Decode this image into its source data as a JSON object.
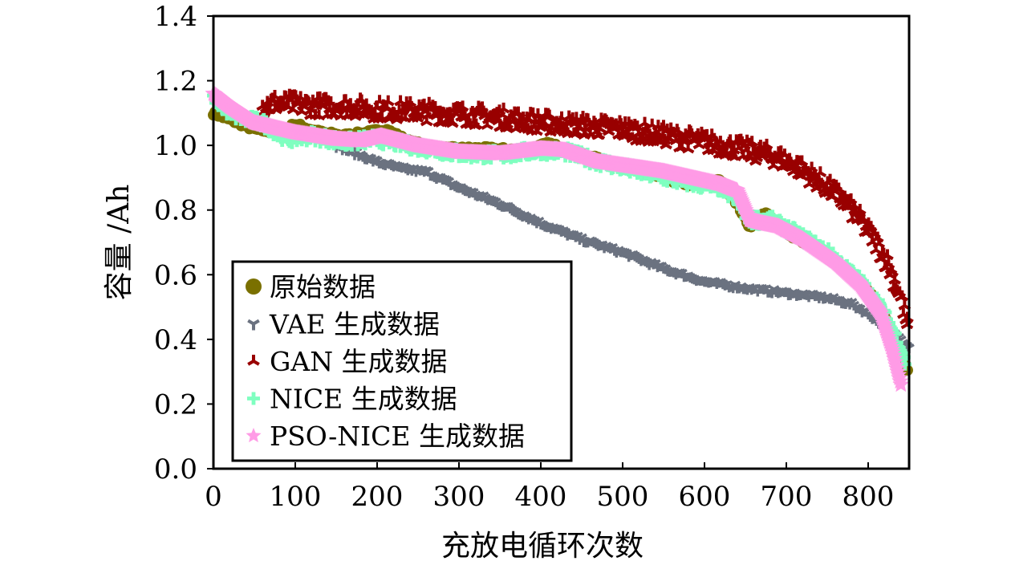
{
  "chart_data": {
    "type": "scatter",
    "title": "",
    "xlabel": "充放电循环次数",
    "ylabel": "容量 /Ah",
    "xlim": [
      0,
      850
    ],
    "ylim": [
      0.0,
      1.4
    ],
    "grid": false,
    "x_ticks": [
      0,
      100,
      200,
      300,
      400,
      500,
      600,
      700,
      800
    ],
    "x_tick_labels": [
      "0",
      "100",
      "200",
      "300",
      "400",
      "500",
      "600",
      "700",
      "800"
    ],
    "y_ticks": [
      0.0,
      0.2,
      0.4,
      0.6,
      0.8,
      1.0,
      1.2,
      1.4
    ],
    "y_tick_labels": [
      "0.0",
      "0.2",
      "0.4",
      "0.6",
      "0.8",
      "1.0",
      "1.2",
      "1.4"
    ],
    "legend_placement": "lower-left",
    "series": [
      {
        "name": "原始数据",
        "marker": "circle",
        "color": "#7a7000",
        "x": [
          0,
          20,
          50,
          80,
          100,
          130,
          160,
          190,
          210,
          240,
          280,
          330,
          380,
          410,
          440,
          480,
          530,
          580,
          620,
          640,
          655,
          675,
          700,
          730,
          770,
          800,
          820,
          840,
          848
        ],
        "y": [
          1.1,
          1.08,
          1.05,
          1.04,
          1.065,
          1.04,
          1.03,
          1.04,
          1.05,
          1.01,
          0.99,
          0.99,
          0.985,
          1.005,
          0.98,
          0.95,
          0.91,
          0.88,
          0.89,
          0.82,
          0.75,
          0.79,
          0.73,
          0.69,
          0.62,
          0.55,
          0.47,
          0.37,
          0.31
        ]
      },
      {
        "name": "VAE 生成数据",
        "marker": "tri-down",
        "color": "#6b7280",
        "x": [
          150,
          180,
          200,
          230,
          260,
          300,
          350,
          400,
          450,
          500,
          550,
          600,
          650,
          700,
          750,
          780,
          800,
          820,
          835,
          850
        ],
        "y": [
          1.0,
          0.97,
          0.95,
          0.93,
          0.92,
          0.87,
          0.82,
          0.76,
          0.71,
          0.67,
          0.62,
          0.58,
          0.56,
          0.545,
          0.53,
          0.51,
          0.48,
          0.44,
          0.41,
          0.38
        ]
      },
      {
        "name": "GAN 生成数据",
        "marker": "tri-up",
        "color": "#990000",
        "x": [
          60,
          75,
          130,
          160,
          200,
          250,
          300,
          350,
          400,
          450,
          500,
          550,
          600,
          640,
          680,
          710,
          740,
          770,
          790,
          810,
          825,
          840,
          848
        ],
        "y": [
          1.12,
          1.13,
          1.12,
          1.12,
          1.11,
          1.105,
          1.095,
          1.085,
          1.07,
          1.06,
          1.05,
          1.03,
          1.01,
          0.99,
          0.97,
          0.94,
          0.89,
          0.83,
          0.77,
          0.7,
          0.63,
          0.53,
          0.44
        ]
      },
      {
        "name": "NICE 生成数据",
        "marker": "plus",
        "color": "#7fffc0",
        "x": [
          0,
          20,
          40,
          60,
          90,
          120,
          160,
          200,
          250,
          300,
          350,
          400,
          430,
          470,
          520,
          570,
          620,
          640,
          655,
          680,
          710,
          750,
          790,
          815,
          835,
          845
        ],
        "y": [
          1.15,
          1.1,
          1.08,
          1.07,
          1.02,
          1.03,
          1.01,
          1.02,
          0.995,
          0.975,
          0.97,
          0.985,
          0.98,
          0.95,
          0.92,
          0.89,
          0.87,
          0.83,
          0.77,
          0.77,
          0.73,
          0.67,
          0.58,
          0.5,
          0.4,
          0.33
        ]
      },
      {
        "name": "PSO-NICE 生成数据",
        "marker": "star",
        "color": "#ff9be6",
        "x": [
          0,
          20,
          50,
          100,
          150,
          180,
          205,
          250,
          300,
          350,
          400,
          430,
          470,
          550,
          620,
          640,
          655,
          670,
          690,
          720,
          760,
          790,
          815,
          830,
          840
        ],
        "y": [
          1.16,
          1.12,
          1.07,
          1.04,
          1.02,
          1.015,
          1.03,
          1.0,
          0.98,
          0.975,
          0.99,
          0.985,
          0.95,
          0.92,
          0.88,
          0.86,
          0.77,
          0.76,
          0.75,
          0.71,
          0.64,
          0.57,
          0.48,
          0.36,
          0.26
        ]
      }
    ]
  }
}
